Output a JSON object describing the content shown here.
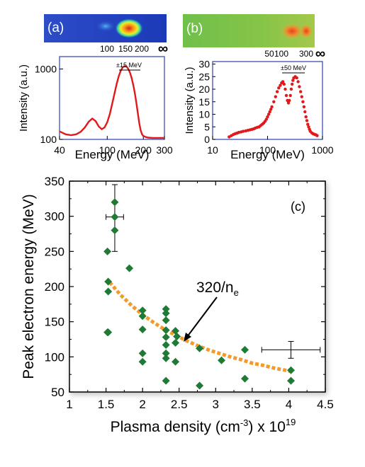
{
  "panels": {
    "a": {
      "label": "(a)",
      "image_ticks": [
        "100",
        "150",
        "200",
        "∞"
      ],
      "annotation": "±15 MeV"
    },
    "b": {
      "label": "(b)",
      "image_ticks": [
        "50",
        "100",
        "300",
        "∞"
      ],
      "annotation": "±50 MeV"
    },
    "c": {
      "label": "(c)",
      "annotation": "320/n",
      "annotation_sub": "e",
      "xlabel_main": "Plasma density (cm",
      "xlabel_sup": "-3",
      "xlabel_tail": ") x 10",
      "xlabel_exp": "19"
    }
  },
  "colors": {
    "red_series": "#e0191b",
    "scatter": "#1f7a35",
    "fit": "#f39a2b",
    "axis_box_ab": "#2b3fb5"
  },
  "chart_data": [
    {
      "id": "a",
      "type": "line",
      "xlabel": "Energy (MeV)",
      "ylabel": "Intensity (a.u.)",
      "xscale": "log",
      "yscale": "log",
      "xlim": [
        40,
        300
      ],
      "ylim": [
        100,
        1500
      ],
      "xticks": [
        40,
        100,
        200,
        300
      ],
      "xtick_labels": [
        "40",
        "100",
        "200",
        "300"
      ],
      "yticks": [
        100,
        1000
      ],
      "ytick_labels": [
        "100",
        "1000"
      ],
      "series": [
        {
          "x": [
            40,
            45,
            50,
            55,
            60,
            65,
            70,
            75,
            80,
            85,
            90,
            95,
            100,
            105,
            110,
            115,
            120,
            125,
            130,
            135,
            140,
            145,
            150,
            155,
            160,
            165,
            170,
            175,
            180,
            185,
            190,
            195,
            200,
            210,
            220,
            240,
            260,
            280,
            300
          ],
          "values": [
            130,
            118,
            115,
            118,
            128,
            148,
            178,
            198,
            182,
            152,
            140,
            148,
            175,
            228,
            320,
            450,
            620,
            800,
            960,
            1060,
            1100,
            1080,
            1000,
            880,
            740,
            590,
            450,
            330,
            235,
            170,
            135,
            118,
            112,
            108,
            106,
            105,
            105,
            105,
            105
          ]
        }
      ]
    },
    {
      "id": "b",
      "type": "scatter",
      "xlabel": "Energy (MeV)",
      "ylabel": "Intensity (a.u.)",
      "xscale": "log",
      "xlim": [
        10,
        1000
      ],
      "ylim": [
        0,
        31
      ],
      "xticks": [
        10,
        100,
        1000
      ],
      "xtick_labels": [
        "10",
        "100",
        "1000"
      ],
      "yticks": [
        0,
        5,
        10,
        15,
        20,
        25,
        30
      ],
      "ytick_labels": [
        "0",
        "5",
        "10",
        "15",
        "20",
        "25",
        "30"
      ],
      "series": [
        {
          "x": [
            20,
            22,
            24,
            26,
            28,
            30,
            33,
            36,
            40,
            44,
            48,
            52,
            56,
            60,
            65,
            70,
            75,
            80,
            85,
            90,
            95,
            100,
            105,
            110,
            115,
            120,
            130,
            140,
            150,
            160,
            170,
            180,
            190,
            200,
            210,
            220,
            230,
            240,
            250,
            260,
            270,
            280,
            290,
            300,
            320,
            340,
            360,
            380,
            400,
            420,
            440,
            460,
            480,
            500,
            520,
            540,
            560,
            580,
            600,
            640,
            680,
            720,
            760,
            800
          ],
          "values": [
            1.0,
            1.5,
            2.0,
            2.3,
            2.5,
            2.8,
            3.0,
            3.2,
            3.4,
            3.6,
            3.8,
            4.0,
            4.2,
            4.5,
            4.8,
            5.0,
            5.5,
            6.0,
            6.5,
            7.2,
            8.0,
            9.0,
            10.0,
            11.0,
            12.0,
            13.0,
            15.0,
            17.0,
            19.0,
            20.5,
            21.5,
            22.5,
            23.0,
            22.0,
            20.0,
            17.5,
            15.5,
            14.5,
            15.5,
            17.5,
            20.0,
            22.0,
            23.5,
            24.5,
            25.0,
            24.5,
            23.0,
            21.0,
            19.0,
            17.0,
            15.0,
            13.0,
            11.0,
            9.0,
            7.5,
            6.0,
            5.0,
            4.0,
            3.2,
            2.6,
            2.2,
            2.0,
            1.8,
            1.5
          ]
        }
      ]
    },
    {
      "id": "c",
      "type": "scatter",
      "ylabel": "Peak electron energy (MeV)",
      "xlim": [
        1,
        4.5
      ],
      "ylim": [
        50,
        350
      ],
      "xticks": [
        1,
        1.5,
        2,
        2.5,
        3,
        3.5,
        4,
        4.5
      ],
      "xtick_labels": [
        "1",
        "1.5",
        "2",
        "2.5",
        "3",
        "3.5",
        "4",
        "4.5"
      ],
      "yticks": [
        50,
        100,
        150,
        200,
        250,
        300,
        350
      ],
      "ytick_labels": [
        "50",
        "100",
        "150",
        "200",
        "250",
        "300",
        "350"
      ],
      "series": [
        {
          "x": [
            1.52,
            1.53,
            1.53,
            1.53,
            1.52,
            1.62,
            1.62,
            1.62,
            1.82,
            2.0,
            2.0,
            2.0,
            2.0,
            2.0,
            2.32,
            2.32,
            2.32,
            2.32,
            2.32,
            2.32,
            2.32,
            2.32,
            2.32,
            2.45,
            2.45,
            2.45,
            2.47,
            2.78,
            2.78,
            3.08,
            3.4,
            3.4,
            4.03,
            4.03
          ],
          "values": [
            250,
            207,
            193,
            135,
            135,
            320,
            280,
            299,
            226,
            166,
            158,
            139,
            105,
            93,
            168,
            162,
            152,
            138,
            128,
            117,
            105,
            98,
            66,
            137,
            120,
            93,
            129,
            112,
            59,
            95,
            110,
            69,
            81,
            66
          ]
        },
        {
          "name": "320/n",
          "x": [
            1.55,
            1.7,
            1.85,
            2.0,
            2.15,
            2.3,
            2.45,
            2.6,
            2.75,
            2.9,
            3.05,
            3.2,
            3.35,
            3.5,
            3.65,
            3.8,
            3.95,
            4.05
          ],
          "values": [
            206,
            188,
            173,
            160,
            149,
            139,
            131,
            123,
            116,
            110,
            105,
            100,
            96,
            91,
            88,
            84,
            81,
            79
          ]
        }
      ],
      "error_bars": [
        {
          "x": 1.62,
          "y": 299,
          "xerr": 0.12,
          "yerr_low": 49,
          "yerr_high": 46
        },
        {
          "x": 4.03,
          "y": 110,
          "xerr": 0.4,
          "yerr_low": 12,
          "yerr_high": 12
        }
      ]
    }
  ]
}
